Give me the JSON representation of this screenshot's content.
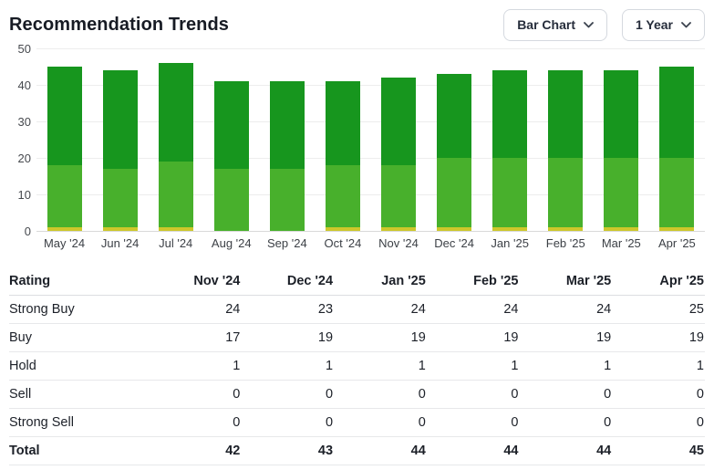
{
  "header": {
    "title": "Recommendation Trends"
  },
  "controls": {
    "chart_type": {
      "value": "Bar Chart"
    },
    "period": {
      "value": "1 Year"
    }
  },
  "chart_data": {
    "type": "bar",
    "stacked": true,
    "title": "Recommendation Trends",
    "xlabel": "",
    "ylabel": "",
    "ylim": [
      0,
      50
    ],
    "yticks": [
      0,
      10,
      20,
      30,
      40,
      50
    ],
    "grid": true,
    "legend": false,
    "categories": [
      "May '24",
      "Jun '24",
      "Jul '24",
      "Aug '24",
      "Sep '24",
      "Oct '24",
      "Nov '24",
      "Dec '24",
      "Jan '25",
      "Feb '25",
      "Mar '25",
      "Apr '25"
    ],
    "series": [
      {
        "name": "Strong Buy",
        "color": "#17961e",
        "values": [
          27,
          27,
          27,
          24,
          24,
          23,
          24,
          23,
          24,
          24,
          24,
          25
        ]
      },
      {
        "name": "Buy",
        "color": "#48b02c",
        "values": [
          17,
          16,
          18,
          17,
          17,
          17,
          17,
          19,
          19,
          19,
          19,
          19
        ]
      },
      {
        "name": "Hold",
        "color": "#cdc72b",
        "values": [
          1,
          1,
          1,
          0,
          0,
          1,
          1,
          1,
          1,
          1,
          1,
          1
        ]
      },
      {
        "name": "Sell",
        "color": "#e8862d",
        "values": [
          0,
          0,
          0,
          0,
          0,
          0,
          0,
          0,
          0,
          0,
          0,
          0
        ]
      },
      {
        "name": "Strong Sell",
        "color": "#d93025",
        "values": [
          0,
          0,
          0,
          0,
          0,
          0,
          0,
          0,
          0,
          0,
          0,
          0
        ]
      }
    ],
    "totals": [
      45,
      44,
      46,
      41,
      41,
      41,
      42,
      43,
      44,
      44,
      44,
      45
    ]
  },
  "table": {
    "columns": [
      "Rating",
      "Nov '24",
      "Dec '24",
      "Jan '25",
      "Feb '25",
      "Mar '25",
      "Apr '25"
    ],
    "rows": [
      {
        "label": "Strong Buy",
        "values": [
          "24",
          "23",
          "24",
          "24",
          "24",
          "25"
        ]
      },
      {
        "label": "Buy",
        "values": [
          "17",
          "19",
          "19",
          "19",
          "19",
          "19"
        ]
      },
      {
        "label": "Hold",
        "values": [
          "1",
          "1",
          "1",
          "1",
          "1",
          "1"
        ]
      },
      {
        "label": "Sell",
        "values": [
          "0",
          "0",
          "0",
          "0",
          "0",
          "0"
        ]
      },
      {
        "label": "Strong Sell",
        "values": [
          "0",
          "0",
          "0",
          "0",
          "0",
          "0"
        ]
      },
      {
        "label": "Total",
        "values": [
          "42",
          "43",
          "44",
          "44",
          "44",
          "45"
        ]
      }
    ]
  }
}
